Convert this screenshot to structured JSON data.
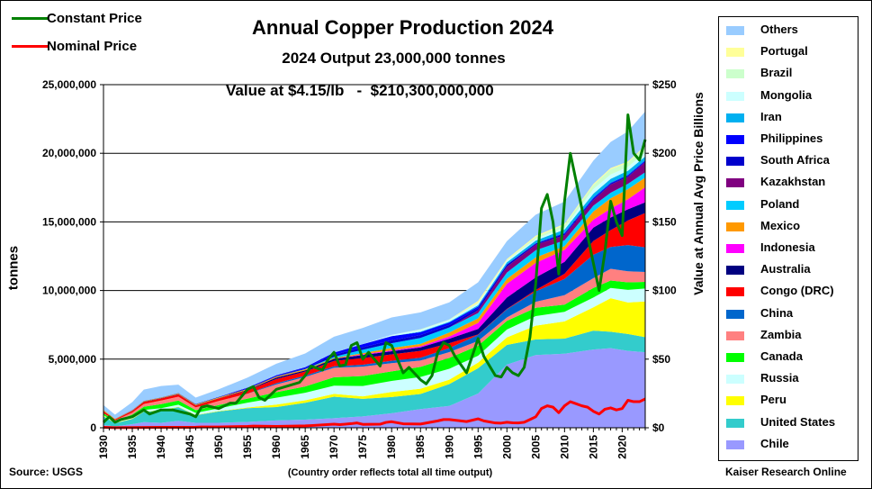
{
  "chart_data": {
    "type": "area",
    "title": "Annual Copper Production 2024",
    "subtitle": "2024 Output 23,000,000 tonnes",
    "value_line": "Value at $4.15/lb   -  $210,300,000,000",
    "ylabel": "tonnes",
    "y2label": "Value at Annual Avg Price  Billions",
    "source": "Source: USGS",
    "note": "(Country order reflects total all time output)",
    "credit": "Kaiser Research Online",
    "ylim": [
      0,
      25000000
    ],
    "y2lim": [
      0,
      250
    ],
    "xlim": [
      1930,
      2024
    ],
    "y_ticks": [
      "0",
      "5,000,000",
      "10,000,000",
      "15,000,000",
      "20,000,000",
      "25,000,000"
    ],
    "y2_ticks": [
      "$0",
      "$50",
      "$100",
      "$150",
      "$200",
      "$250"
    ],
    "x_ticks": [
      "1930",
      "1935",
      "1940",
      "1945",
      "1950",
      "1955",
      "1960",
      "1965",
      "1970",
      "1975",
      "1980",
      "1985",
      "1990",
      "1995",
      "2000",
      "2005",
      "2010",
      "2015",
      "2020"
    ],
    "x": [
      1930,
      1932,
      1935,
      1937,
      1940,
      1943,
      1946,
      1950,
      1955,
      1960,
      1965,
      1970,
      1975,
      1980,
      1985,
      1990,
      1995,
      2000,
      2005,
      2010,
      2015,
      2018,
      2021,
      2024
    ],
    "series": [
      {
        "name": "Chile",
        "color": "#9999ff",
        "values": [
          200000,
          100000,
          260000,
          410000,
          360000,
          500000,
          360000,
          360000,
          430000,
          530000,
          590000,
          700000,
          830000,
          1060000,
          1360000,
          1590000,
          2490000,
          4600000,
          5300000,
          5400000,
          5700000,
          5800000,
          5600000,
          5500000
        ]
      },
      {
        "name": "United States",
        "color": "#33cccc",
        "values": [
          640000,
          230000,
          380000,
          760000,
          880000,
          1000000,
          550000,
          830000,
          1000000,
          980000,
          1230000,
          1560000,
          1280000,
          1180000,
          1100000,
          1590000,
          1850000,
          1440000,
          1140000,
          1100000,
          1380000,
          1200000,
          1230000,
          1100000
        ]
      },
      {
        "name": "Peru",
        "color": "#ffff00",
        "values": [
          50000,
          20000,
          30000,
          30000,
          35000,
          35000,
          25000,
          30000,
          45000,
          180000,
          180000,
          210000,
          180000,
          370000,
          390000,
          320000,
          410000,
          550000,
          1000000,
          1250000,
          1700000,
          2440000,
          2300000,
          2600000
        ]
      },
      {
        "name": "Russia",
        "color": "#ccffff",
        "values": [
          30000,
          40000,
          80000,
          100000,
          150000,
          150000,
          150000,
          200000,
          350000,
          500000,
          550000,
          600000,
          750000,
          800000,
          850000,
          800000,
          500000,
          570000,
          700000,
          700000,
          710000,
          750000,
          920000,
          950000
        ]
      },
      {
        "name": "Canada",
        "color": "#00ff00",
        "values": [
          140000,
          100000,
          210000,
          230000,
          300000,
          300000,
          200000,
          240000,
          300000,
          400000,
          460000,
          610000,
          730000,
          700000,
          740000,
          790000,
          730000,
          630000,
          600000,
          520000,
          700000,
          540000,
          550000,
          480000
        ]
      },
      {
        "name": "Zambia",
        "color": "#ff8080",
        "values": [
          0,
          50000,
          150000,
          200000,
          260000,
          280000,
          200000,
          290000,
          350000,
          570000,
          690000,
          690000,
          680000,
          600000,
          460000,
          420000,
          340000,
          250000,
          440000,
          690000,
          710000,
          850000,
          800000,
          720000
        ]
      },
      {
        "name": "China",
        "color": "#0066cc",
        "values": [
          0,
          0,
          0,
          0,
          0,
          0,
          0,
          0,
          10000,
          90000,
          100000,
          110000,
          140000,
          170000,
          200000,
          290000,
          450000,
          590000,
          760000,
          1180000,
          1710000,
          1590000,
          1910000,
          1800000
        ]
      },
      {
        "name": "Congo (DRC)",
        "color": "#ff0000",
        "values": [
          140000,
          60000,
          110000,
          150000,
          150000,
          160000,
          130000,
          180000,
          240000,
          300000,
          290000,
          390000,
          490000,
          470000,
          500000,
          360000,
          30000,
          30000,
          100000,
          380000,
          1000000,
          1230000,
          1800000,
          2500000
        ]
      },
      {
        "name": "Australia",
        "color": "#000080",
        "values": [
          15000,
          10000,
          15000,
          20000,
          25000,
          30000,
          25000,
          20000,
          40000,
          110000,
          90000,
          150000,
          220000,
          230000,
          260000,
          330000,
          400000,
          830000,
          920000,
          870000,
          970000,
          920000,
          810000,
          780000
        ]
      },
      {
        "name": "Indonesia",
        "color": "#ff00ff",
        "values": [
          0,
          0,
          0,
          0,
          0,
          0,
          0,
          0,
          0,
          0,
          0,
          0,
          60000,
          60000,
          80000,
          160000,
          440000,
          1000000,
          1060000,
          870000,
          580000,
          650000,
          730000,
          1100000
        ]
      },
      {
        "name": "Mexico",
        "color": "#ff9900",
        "values": [
          70000,
          40000,
          40000,
          46000,
          38000,
          50000,
          60000,
          60000,
          55000,
          60000,
          75000,
          61000,
          78000,
          175000,
          173000,
          291000,
          334000,
          365000,
          391000,
          270000,
          594000,
          751000,
          734000,
          700000
        ]
      },
      {
        "name": "Poland",
        "color": "#00ccff",
        "values": [
          0,
          0,
          0,
          0,
          0,
          0,
          0,
          2000,
          10000,
          15000,
          30000,
          90000,
          250000,
          343000,
          431000,
          370000,
          384000,
          456000,
          523000,
          425000,
          425000,
          401000,
          391000,
          390000
        ]
      },
      {
        "name": "Kazakhstan",
        "color": "#800080",
        "values": [
          0,
          0,
          0,
          0,
          0,
          0,
          0,
          0,
          0,
          0,
          0,
          0,
          0,
          0,
          0,
          0,
          205000,
          430000,
          400000,
          380000,
          413000,
          603000,
          510000,
          740000
        ]
      },
      {
        "name": "South Africa",
        "color": "#0000cc",
        "values": [
          10000,
          10000,
          20000,
          15000,
          18000,
          22000,
          28000,
          33000,
          46000,
          46000,
          62000,
          147000,
          179000,
          212000,
          203000,
          180000,
          160000,
          137000,
          90000,
          100000,
          80000,
          70000,
          70000,
          60000
        ]
      },
      {
        "name": "Philippines",
        "color": "#0000ff",
        "values": [
          0,
          0,
          0,
          0,
          0,
          0,
          0,
          10000,
          50000,
          50000,
          62000,
          160000,
          226000,
          304000,
          218000,
          182000,
          108000,
          32000,
          16000,
          58000,
          83000,
          56000,
          70000,
          60000
        ]
      },
      {
        "name": "Iran",
        "color": "#00b0f0",
        "values": [
          0,
          0,
          0,
          0,
          0,
          0,
          0,
          0,
          0,
          0,
          0,
          0,
          0,
          0,
          40000,
          50000,
          100000,
          150000,
          200000,
          250000,
          300000,
          280000,
          300000,
          290000
        ]
      },
      {
        "name": "Mongolia",
        "color": "#ccffff",
        "values": [
          0,
          0,
          0,
          0,
          0,
          0,
          0,
          0,
          0,
          0,
          0,
          0,
          0,
          90000,
          120000,
          125000,
          125000,
          125000,
          125000,
          130000,
          330000,
          320000,
          280000,
          300000
        ]
      },
      {
        "name": "Brazil",
        "color": "#ccffcc",
        "values": [
          0,
          0,
          0,
          0,
          0,
          0,
          0,
          0,
          0,
          0,
          0,
          0,
          0,
          0,
          50000,
          40000,
          45000,
          32000,
          135000,
          210000,
          300000,
          390000,
          310000,
          400000
        ]
      },
      {
        "name": "Portugal",
        "color": "#ffff99",
        "values": [
          0,
          0,
          0,
          0,
          0,
          0,
          0,
          0,
          0,
          0,
          0,
          0,
          0,
          0,
          0,
          0,
          140000,
          80000,
          90000,
          75000,
          80000,
          85000,
          85000,
          80000
        ]
      },
      {
        "name": "Others",
        "color": "#99ccff",
        "values": [
          361000,
          291000,
          575000,
          820000,
          830000,
          613000,
          472000,
          547000,
          735000,
          840000,
          1005000,
          1158000,
          1184000,
          1270000,
          1230000,
          1250000,
          1360000,
          1300000,
          1540000,
          1620000,
          1700000,
          1900000,
          2200000,
          2500000
        ]
      }
    ],
    "price_series": [
      {
        "name": "Constant Price",
        "color": "#008000",
        "axis": "right",
        "x": [
          1930,
          1931,
          1932,
          1933,
          1935,
          1937,
          1938,
          1940,
          1942,
          1944,
          1945,
          1946,
          1947,
          1948,
          1950,
          1952,
          1953,
          1955,
          1956,
          1957,
          1958,
          1960,
          1964,
          1965,
          1966,
          1968,
          1969,
          1970,
          1971,
          1972,
          1973,
          1974,
          1975,
          1976,
          1978,
          1979,
          1980,
          1982,
          1983,
          1985,
          1986,
          1987,
          1988,
          1989,
          1990,
          1991,
          1993,
          1995,
          1996,
          1998,
          1999,
          2000,
          2001,
          2002,
          2003,
          2004,
          2005,
          2006,
          2007,
          2008,
          2009,
          2010,
          2011,
          2012,
          2013,
          2014,
          2015,
          2016,
          2017,
          2018,
          2019,
          2020,
          2021,
          2022,
          2023,
          2024
        ],
        "values": [
          4,
          8,
          4,
          6,
          8,
          13,
          10,
          13,
          13,
          11,
          10,
          8,
          15,
          16,
          14,
          18,
          18,
          28,
          30,
          22,
          20,
          28,
          33,
          38,
          45,
          42,
          50,
          55,
          45,
          46,
          60,
          62,
          50,
          55,
          45,
          62,
          60,
          40,
          44,
          35,
          32,
          38,
          55,
          62,
          60,
          52,
          40,
          65,
          52,
          38,
          37,
          44,
          40,
          38,
          44,
          66,
          105,
          160,
          170,
          150,
          112,
          165,
          200,
          180,
          160,
          140,
          120,
          100,
          128,
          165,
          150,
          140,
          228,
          200,
          195,
          210
        ]
      },
      {
        "name": "Nominal Price",
        "color": "#ff0000",
        "axis": "right",
        "x": [
          1930,
          1932,
          1935,
          1940,
          1945,
          1946,
          1947,
          1950,
          1955,
          1956,
          1960,
          1965,
          1966,
          1970,
          1971,
          1973,
          1974,
          1975,
          1978,
          1979,
          1980,
          1982,
          1985,
          1988,
          1989,
          1990,
          1993,
          1995,
          1996,
          1998,
          1999,
          2000,
          2001,
          2002,
          2003,
          2004,
          2005,
          2006,
          2007,
          2008,
          2009,
          2010,
          2011,
          2012,
          2013,
          2014,
          2015,
          2016,
          2017,
          2018,
          2019,
          2020,
          2021,
          2022,
          2023,
          2024
        ],
        "values": [
          0.3,
          0.1,
          0.2,
          0.3,
          0.3,
          0.4,
          0.6,
          0.6,
          1.0,
          1.2,
          1.0,
          1.4,
          1.6,
          2.6,
          2.3,
          3.0,
          3.5,
          2.5,
          2.6,
          3.9,
          4.4,
          2.9,
          2.7,
          5.0,
          6.0,
          6.0,
          4.5,
          6.5,
          5.0,
          3.5,
          3.4,
          4.0,
          3.6,
          3.5,
          4.0,
          6.0,
          8.0,
          14.0,
          16.0,
          15.0,
          11.0,
          16.0,
          19.0,
          17.5,
          16.0,
          15.0,
          12.0,
          10.0,
          13.5,
          14.5,
          13.0,
          14.0,
          20.0,
          19.0,
          19.0,
          21.0
        ]
      }
    ],
    "legend_order": [
      "Others",
      "Portugal",
      "Brazil",
      "Mongolia",
      "Iran",
      "Philippines",
      "South Africa",
      "Kazakhstan",
      "Poland",
      "Mexico",
      "Indonesia",
      "Australia",
      "Congo (DRC)",
      "China",
      "Zambia",
      "Canada",
      "Russia",
      "Peru",
      "United States",
      "Chile"
    ]
  }
}
